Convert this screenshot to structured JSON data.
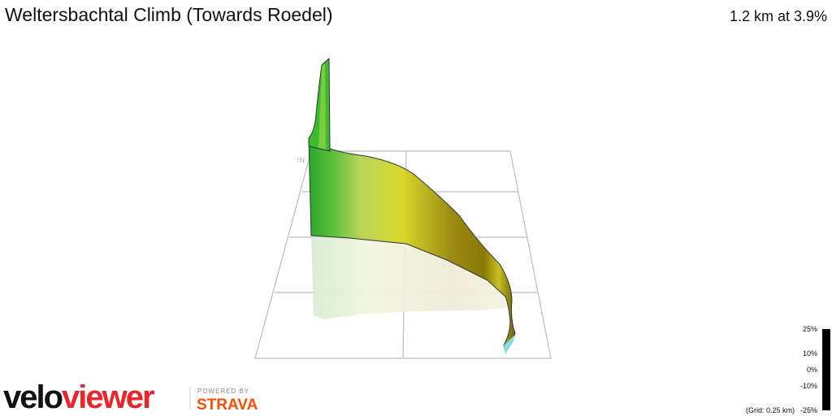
{
  "header": {
    "title": "Weltersbachtal Climb (Towards Roedel)",
    "stats": "1.2 km at 3.9%"
  },
  "legend": {
    "labels": [
      "25%",
      "10%",
      "0%",
      "-10%",
      "-25%"
    ],
    "grid": "(Grid: 0.25 km)"
  },
  "branding": {
    "logo_part1": "velo",
    "logo_part2": "viewer",
    "powered_by": "POWERED BY",
    "strava": "STRAVA"
  }
}
